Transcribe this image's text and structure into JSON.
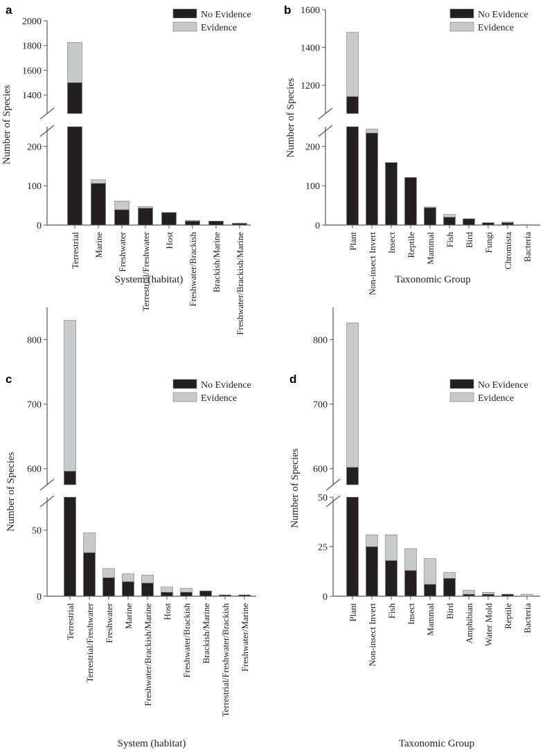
{
  "colors": {
    "no_evidence": "#231f20",
    "evidence": "#c8c9cb",
    "axis": "#555555"
  },
  "chart_data": [
    {
      "panel": "a",
      "type": "bar",
      "stacked": true,
      "xlabel": "System (habitat)",
      "ylabel": "Number of Species",
      "legend": [
        "No Evidence",
        "Evidence"
      ],
      "legend_position": "top-right",
      "categories": [
        "Terrestrial",
        "Marine",
        "Freshwater",
        "Terrestrial/Freshwater",
        "Host",
        "Freshwater/Brackish",
        "Brackish/Marine",
        "Freshwater/Brackish/Marine"
      ],
      "series": [
        {
          "name": "No Evidence",
          "values": [
            1500,
            106,
            39,
            43,
            32,
            10,
            10,
            4
          ]
        },
        {
          "name": "Evidence",
          "values": [
            325,
            9,
            22,
            4,
            0,
            2,
            0,
            1
          ]
        }
      ],
      "axis_break": true,
      "lower_ylim": [
        0,
        250
      ],
      "lower_ticks": [
        "0",
        "100",
        "200"
      ],
      "upper_ylim": [
        1250,
        2000
      ],
      "upper_ticks": [
        "1400",
        "1600",
        "1800",
        "2000"
      ]
    },
    {
      "panel": "b",
      "type": "bar",
      "stacked": true,
      "xlabel": "Taxonomic Group",
      "ylabel": "Number of Species",
      "legend": [
        "No Evidence",
        "Evidence"
      ],
      "legend_position": "top-right",
      "categories": [
        "Plant",
        "Non-insect Invert",
        "Insect",
        "Reptile",
        "Mammal",
        "Fish",
        "Bird",
        "Fungi",
        "Chromista",
        "Bacteria"
      ],
      "series": [
        {
          "name": "No Evidence",
          "values": [
            1140,
            234,
            159,
            121,
            44,
            20,
            16,
            6,
            6,
            1
          ]
        },
        {
          "name": "Evidence",
          "values": [
            340,
            10,
            0,
            0,
            2,
            7,
            0,
            0,
            2,
            0
          ]
        }
      ],
      "axis_break": true,
      "lower_ylim": [
        0,
        250
      ],
      "lower_ticks": [
        "0",
        "100",
        "200"
      ],
      "upper_ylim": [
        1050,
        1600
      ],
      "upper_ticks": [
        "1200",
        "1400",
        "1600"
      ]
    },
    {
      "panel": "c",
      "type": "bar",
      "stacked": true,
      "xlabel": "System (habitat)",
      "ylabel": "Number of Species",
      "legend": [
        "No Evidence",
        "Evidence"
      ],
      "legend_position": "top-right",
      "categories": [
        "Terrestrial",
        "Terrestrial/Freshwater",
        "Freshwater",
        "Marine",
        "Freshwater/Brackish/Marine",
        "Host",
        "Freshwater/Brackish",
        "Brackish/Marine",
        "Terrestrial/Freshwater/Brackish",
        "Freshwater/Marine"
      ],
      "series": [
        {
          "name": "No Evidence",
          "values": [
            596,
            33,
            14,
            11,
            10,
            3,
            3,
            4,
            1,
            1
          ]
        },
        {
          "name": "Evidence",
          "values": [
            234,
            15,
            7,
            6,
            6,
            4,
            3,
            0,
            0,
            0
          ]
        }
      ],
      "axis_break": true,
      "lower_ylim": [
        0,
        75
      ],
      "lower_ticks": [
        "0",
        "50"
      ],
      "upper_ylim": [
        575,
        850
      ],
      "upper_ticks": [
        "600",
        "700",
        "800"
      ]
    },
    {
      "panel": "d",
      "type": "bar",
      "stacked": true,
      "xlabel": "Taxonomic Group",
      "ylabel": "Number of Species",
      "legend": [
        "No Evidence",
        "Evidence"
      ],
      "legend_position": "top-right",
      "categories": [
        "Plant",
        "Non-insect Invert",
        "Fish",
        "Insect",
        "Mammal",
        "Bird",
        "Amphibian",
        "Water Mold",
        "Reptile",
        "Bacteria"
      ],
      "series": [
        {
          "name": "No Evidence",
          "values": [
            602,
            25,
            18,
            13,
            6,
            9,
            1,
            1,
            1,
            0
          ]
        },
        {
          "name": "Evidence",
          "values": [
            224,
            6,
            13,
            11,
            13,
            3,
            2,
            1,
            0,
            1
          ]
        }
      ],
      "axis_break": true,
      "lower_ylim": [
        0,
        50
      ],
      "lower_ticks": [
        "0",
        "25",
        "50"
      ],
      "upper_ylim": [
        575,
        850
      ],
      "upper_ticks": [
        "600",
        "700",
        "800"
      ]
    }
  ]
}
